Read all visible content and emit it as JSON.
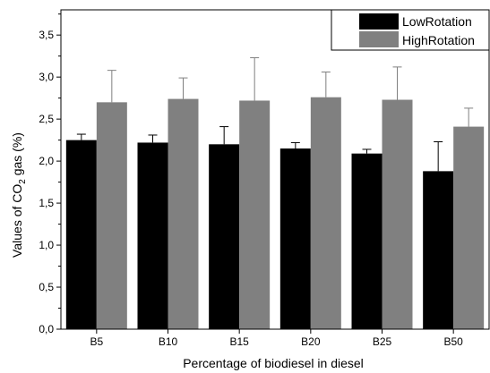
{
  "chart_data": {
    "type": "bar",
    "title": "",
    "xlabel": "Percentage of biodiesel in diesel",
    "ylabel": {
      "prefix": "Values of CO",
      "sub": "2",
      "suffix": " gas (%)"
    },
    "categories": [
      "B5",
      "B10",
      "B15",
      "B20",
      "B25",
      "B50"
    ],
    "series": [
      {
        "name": "LowRotation",
        "color": "#000000",
        "values": [
          2.25,
          2.22,
          2.2,
          2.15,
          2.09,
          1.88
        ],
        "errors": [
          0.07,
          0.09,
          0.21,
          0.07,
          0.05,
          0.35
        ]
      },
      {
        "name": "HighRotation",
        "color": "#808080",
        "values": [
          2.7,
          2.74,
          2.72,
          2.76,
          2.73,
          2.41
        ],
        "errors": [
          0.38,
          0.25,
          0.51,
          0.3,
          0.39,
          0.22
        ]
      }
    ],
    "ylim": [
      0,
      3.8
    ],
    "yticks": [
      "0,0",
      "0,5",
      "1,0",
      "1,5",
      "2,0",
      "2,5",
      "3,0",
      "3,5"
    ],
    "ytick_values": [
      0,
      0.5,
      1.0,
      1.5,
      2.0,
      2.5,
      3.0,
      3.5
    ],
    "legend_position": "top-right",
    "grid": false
  }
}
